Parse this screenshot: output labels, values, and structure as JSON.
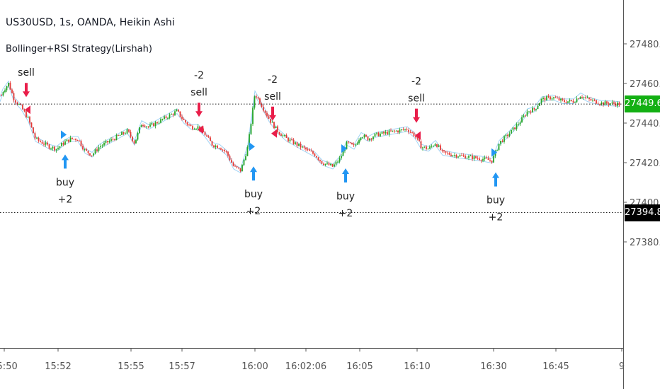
{
  "header": {
    "title": "US30USD, 1s, OANDA, Heikin Ashi",
    "indicator": "Bollinger+RSI Strategy(Lirshah)"
  },
  "colors": {
    "up": "#26a626",
    "down": "#e53935",
    "band": "#9fd3f5",
    "buy": "#2196f3",
    "sell": "#e91e4a",
    "current_price_bg": "#13b013",
    "marked_price_bg": "#000000",
    "axis_text": "#555555"
  },
  "price_axis": {
    "ticks": [
      "27480.0",
      "27460.0",
      "27440.0",
      "27420.0",
      "27400.0",
      "27380.0"
    ],
    "current_price": "27449.6",
    "marked_price": "27394.8"
  },
  "time_axis": {
    "ticks": [
      "15:50",
      "15:52",
      "15:55",
      "15:57",
      "16:00",
      "16:02:06",
      "16:05",
      "16:10",
      "16:30",
      "16:45",
      "9"
    ]
  },
  "chart_data": {
    "type": "candlestick",
    "title": "US30USD, 1s, OANDA, Heikin Ashi",
    "subtitle": "Bollinger+RSI Strategy(Lirshah)",
    "ylim": [
      27370,
      27490
    ],
    "x_tick_labels": [
      "15:50",
      "15:52",
      "15:55",
      "15:57",
      "16:00",
      "16:02:06",
      "16:05",
      "16:10",
      "16:30",
      "16:45",
      "9"
    ],
    "price_path": [
      [
        0,
        27452
      ],
      [
        4,
        27456
      ],
      [
        12,
        27460
      ],
      [
        20,
        27452
      ],
      [
        30,
        27448
      ],
      [
        40,
        27442
      ],
      [
        50,
        27432
      ],
      [
        60,
        27430
      ],
      [
        70,
        27428
      ],
      [
        80,
        27427
      ],
      [
        90,
        27430
      ],
      [
        100,
        27432
      ],
      [
        110,
        27432
      ],
      [
        120,
        27426
      ],
      [
        130,
        27424
      ],
      [
        140,
        27428
      ],
      [
        150,
        27430
      ],
      [
        160,
        27432
      ],
      [
        170,
        27434
      ],
      [
        180,
        27436
      ],
      [
        190,
        27430
      ],
      [
        200,
        27440
      ],
      [
        210,
        27438
      ],
      [
        220,
        27440
      ],
      [
        230,
        27442
      ],
      [
        240,
        27444
      ],
      [
        250,
        27446
      ],
      [
        260,
        27441
      ],
      [
        270,
        27438
      ],
      [
        280,
        27438
      ],
      [
        290,
        27434
      ],
      [
        300,
        27429
      ],
      [
        310,
        27428
      ],
      [
        320,
        27425
      ],
      [
        330,
        27418
      ],
      [
        340,
        27416
      ],
      [
        350,
        27428
      ],
      [
        360,
        27455
      ],
      [
        368,
        27450
      ],
      [
        380,
        27442
      ],
      [
        392,
        27436
      ],
      [
        405,
        27432
      ],
      [
        415,
        27430
      ],
      [
        430,
        27427
      ],
      [
        445,
        27424
      ],
      [
        455,
        27420
      ],
      [
        470,
        27418
      ],
      [
        480,
        27422
      ],
      [
        490,
        27430
      ],
      [
        500,
        27428
      ],
      [
        510,
        27434
      ],
      [
        520,
        27432
      ],
      [
        530,
        27434
      ],
      [
        545,
        27435
      ],
      [
        560,
        27436
      ],
      [
        575,
        27437
      ],
      [
        585,
        27434
      ],
      [
        595,
        27428
      ],
      [
        605,
        27427
      ],
      [
        615,
        27430
      ],
      [
        625,
        27425
      ],
      [
        640,
        27424
      ],
      [
        660,
        27423
      ],
      [
        680,
        27422
      ],
      [
        695,
        27421
      ],
      [
        705,
        27430
      ],
      [
        720,
        27435
      ],
      [
        735,
        27441
      ],
      [
        745,
        27446
      ],
      [
        755,
        27447
      ],
      [
        765,
        27452
      ],
      [
        780,
        27453
      ],
      [
        795,
        27451
      ],
      [
        810,
        27451
      ],
      [
        820,
        27454
      ],
      [
        830,
        27452
      ],
      [
        840,
        27451
      ],
      [
        850,
        27450
      ],
      [
        860,
        27450
      ],
      [
        875,
        27449.6
      ]
    ],
    "current_price": 27449.6,
    "marked_price": 27394.8,
    "signals": [
      {
        "type": "sell",
        "at": 37,
        "price": 27451,
        "labels": [
          "sell"
        ]
      },
      {
        "type": "buy",
        "at": 92,
        "price": 27427,
        "labels": [
          "buy",
          "+2"
        ]
      },
      {
        "type": "sell",
        "at": 281,
        "price": 27441,
        "labels": [
          "-2",
          "sell"
        ]
      },
      {
        "type": "buy",
        "at": 358,
        "price": 27421,
        "labels": [
          "buy",
          "+2"
        ]
      },
      {
        "type": "sell",
        "at": 385,
        "price": 27439,
        "labels": [
          "-2",
          "sell"
        ]
      },
      {
        "type": "buy",
        "at": 488,
        "price": 27420,
        "labels": [
          "buy",
          "+2"
        ]
      },
      {
        "type": "sell",
        "at": 588,
        "price": 27438,
        "labels": [
          "-2",
          "sell"
        ]
      },
      {
        "type": "buy",
        "at": 700,
        "price": 27418,
        "labels": [
          "buy",
          "+2"
        ]
      }
    ]
  }
}
